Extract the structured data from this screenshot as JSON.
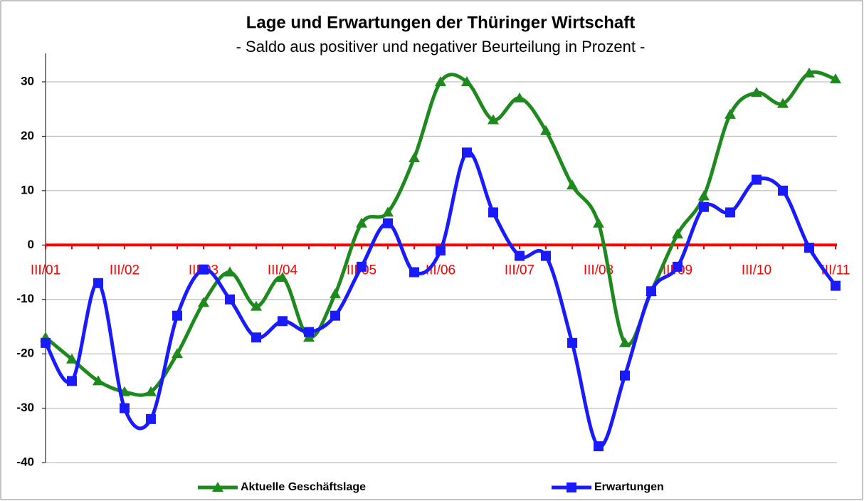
{
  "chart_data": {
    "type": "line",
    "title": "Lage und Erwartungen der Thüringer Wirtschaft",
    "subtitle": "- Saldo aus positiver und negativer Beurteilung in Prozent -",
    "categories": [
      "III/01",
      null,
      null,
      "III/02",
      null,
      null,
      "III/03",
      null,
      null,
      "III/04",
      null,
      null,
      "III/05",
      null,
      null,
      "III/06",
      null,
      null,
      "III/07",
      null,
      null,
      "III/08",
      null,
      null,
      "III/09",
      null,
      null,
      "III/10",
      null,
      null,
      "III/11"
    ],
    "series": [
      {
        "name": "Aktuelle Geschäftslage",
        "color": "#1e8a1e",
        "marker": "triangle",
        "values": [
          -17,
          -21,
          -25,
          -27,
          -27,
          -20,
          -10.6,
          -5,
          -11.3,
          -6,
          -17,
          -9,
          4,
          6,
          16,
          30,
          30,
          23,
          27,
          21,
          11,
          4,
          -18,
          -8.6,
          2,
          9,
          24,
          28,
          26,
          31.6,
          30.5
        ]
      },
      {
        "name": "Erwartungen",
        "color": "#1a1aff",
        "marker": "square",
        "values": [
          -18,
          -25,
          -7,
          -30,
          -32,
          -13,
          -4.5,
          -10,
          -17,
          -14,
          -16,
          -13,
          -4,
          4,
          -5,
          -1,
          17,
          6,
          -2,
          -2,
          -18,
          -37,
          -24,
          -8.5,
          -4,
          7,
          6,
          12,
          10,
          -0.5,
          -7.5
        ]
      }
    ],
    "ylim": [
      -40,
      30
    ],
    "yticks": [
      -40,
      -30,
      -20,
      -10,
      0,
      10,
      20,
      30
    ],
    "grid": true,
    "legend": "bottom"
  }
}
